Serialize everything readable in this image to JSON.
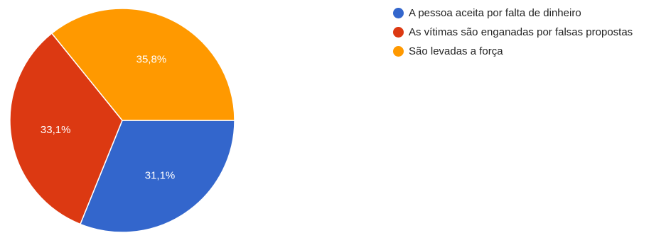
{
  "chart_data": {
    "type": "pie",
    "slices": [
      {
        "label": "A pessoa aceita por falta de dinheiro",
        "value": 31.1,
        "display": "31,1%",
        "color": "#3366cc"
      },
      {
        "label": "As vítimas são enganadas por falsas propostas",
        "value": 33.1,
        "display": "33,1%",
        "color": "#dc3912"
      },
      {
        "label": "São levadas a força",
        "value": 35.8,
        "display": "35,8%",
        "color": "#ff9900"
      }
    ],
    "legend_position": "right"
  }
}
